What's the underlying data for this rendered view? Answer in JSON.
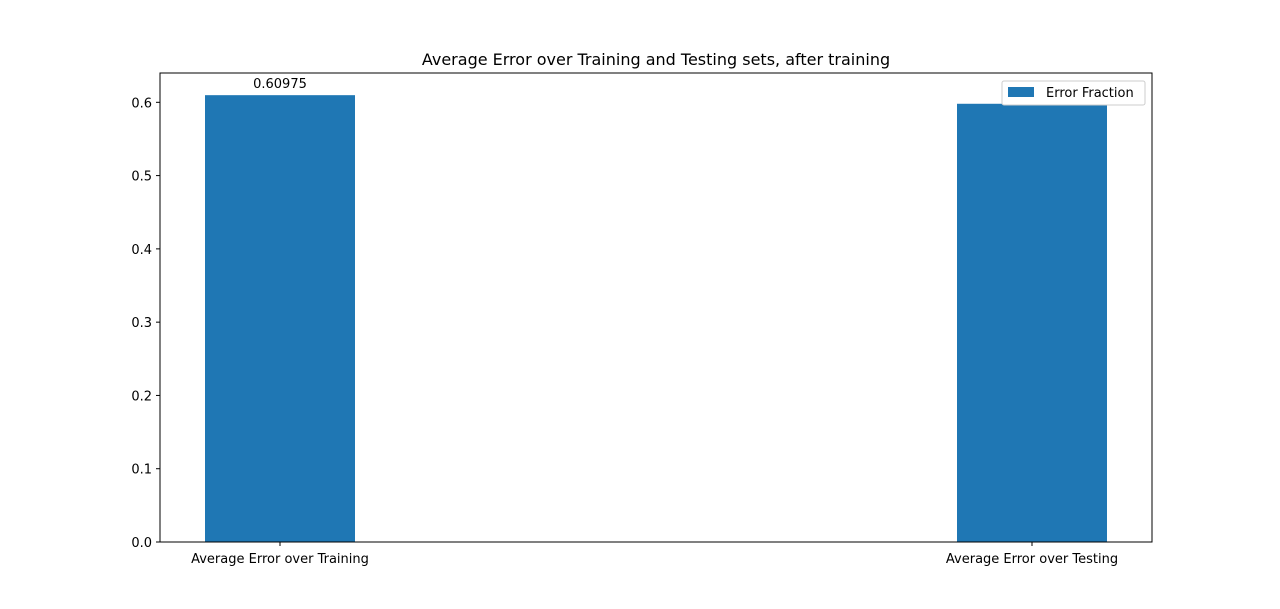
{
  "chart_data": {
    "type": "bar",
    "title": "Average Error over Training and Testing sets, after training",
    "xlabel": "",
    "ylabel": "",
    "categories": [
      "Average Error over Training",
      "Average Error over Testing"
    ],
    "series": [
      {
        "name": "Error Fraction",
        "values": [
          0.60975,
          0.598
        ],
        "color": "#1f77b4"
      }
    ],
    "data_labels": [
      "0.60975",
      ""
    ],
    "ylim": [
      0,
      0.64
    ],
    "yticks": [
      0.0,
      0.1,
      0.2,
      0.3,
      0.4,
      0.5,
      0.6
    ],
    "ytick_labels": [
      "0.0",
      "0.1",
      "0.2",
      "0.3",
      "0.4",
      "0.5",
      "0.6"
    ],
    "grid": false,
    "legend_position": "top-right"
  }
}
